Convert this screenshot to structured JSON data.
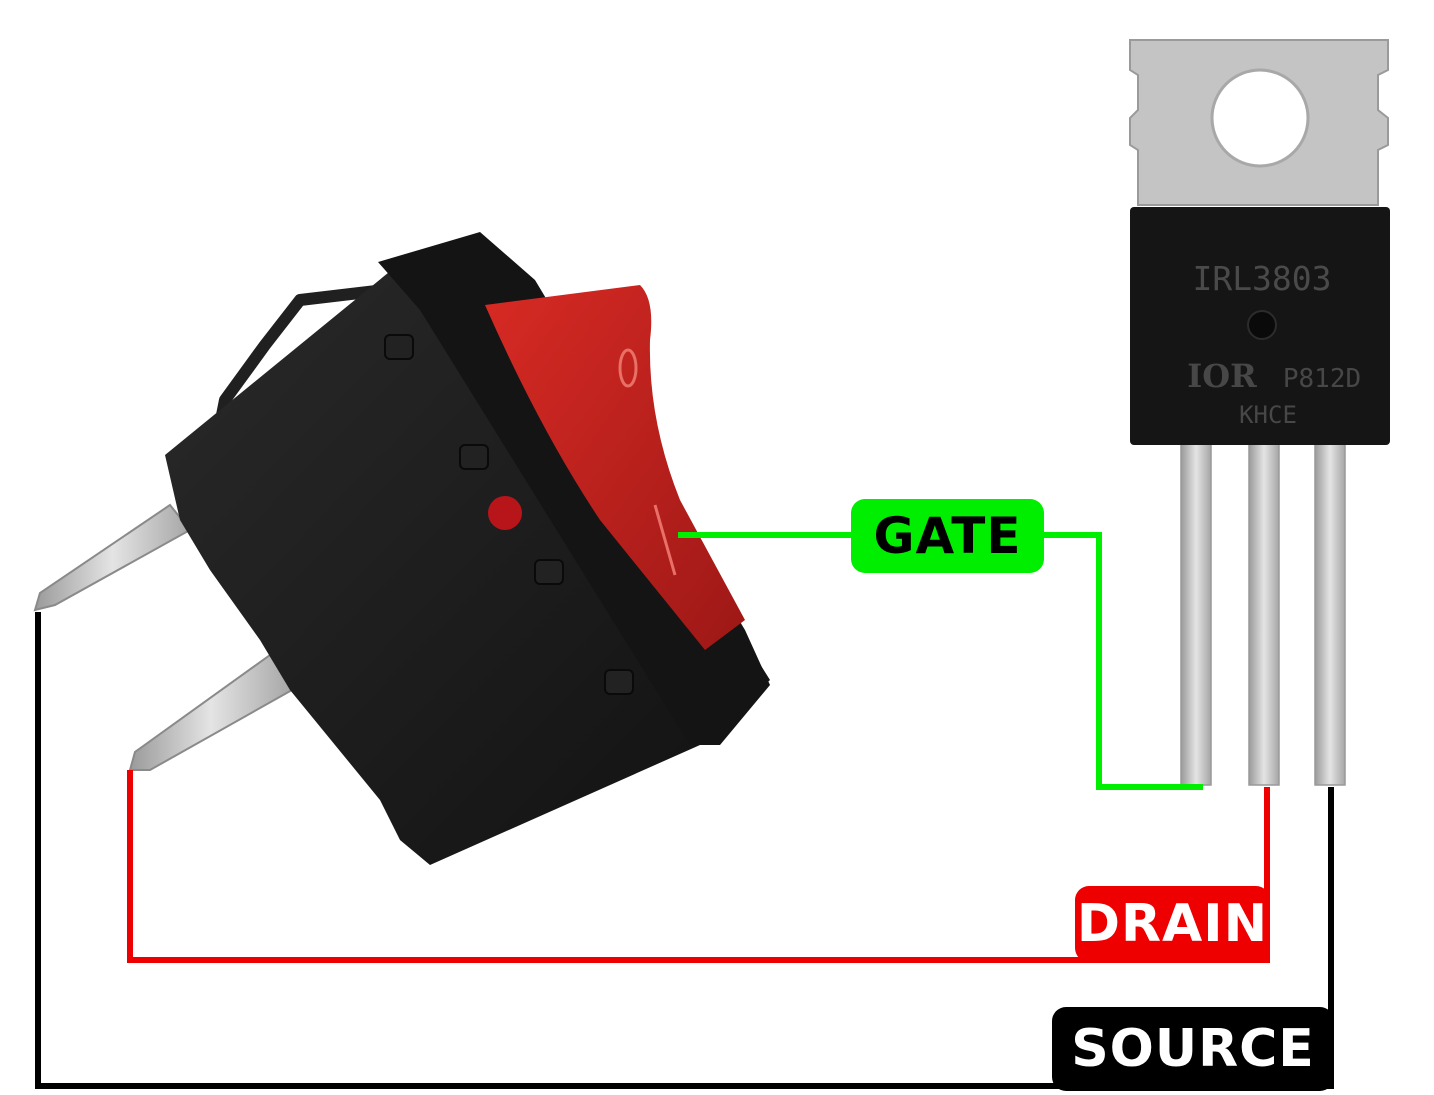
{
  "labels": {
    "gate": "GATE",
    "drain": "DRAIN",
    "source": "SOURCE"
  },
  "transistor": {
    "part_number": "IRL3803",
    "logo": "IOR",
    "code": "P812D",
    "lot": "KHCE"
  },
  "colors": {
    "gate": "#00ee00",
    "drain": "#ee0000",
    "source": "#000000",
    "label_text_dark": "#000000",
    "label_text_light": "#ffffff",
    "switch_body": "#1c1c1c",
    "rocker": "#c8201e",
    "transistor_body": "#161616",
    "metal": "#c9c9c9"
  }
}
